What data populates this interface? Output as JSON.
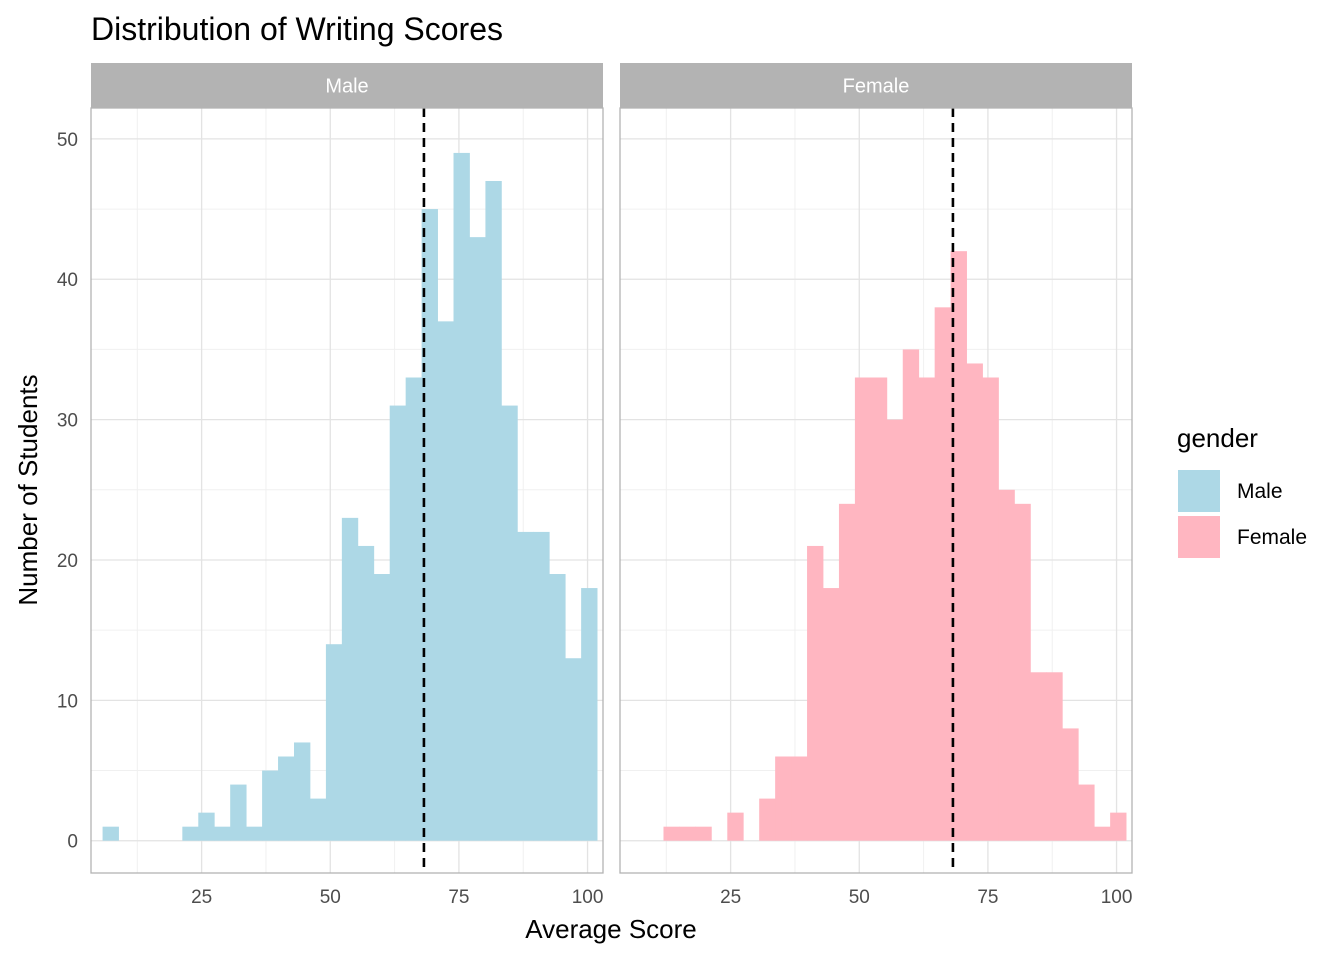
{
  "chart_data": {
    "type": "bar",
    "title": "Distribution of Writing Scores",
    "xlabel": "Average Score",
    "ylabel": "Number of Students",
    "xlim": [
      3.5,
      103
    ],
    "ylim": [
      -2.3,
      52.2
    ],
    "xticks": [
      25,
      50,
      75,
      100
    ],
    "yticks": [
      0,
      10,
      20,
      30,
      40,
      50
    ],
    "grid": true,
    "legend": {
      "title": "gender",
      "position": "right"
    },
    "reference_line": {
      "x": 68.2,
      "style": "dashed",
      "color": "#000000"
    },
    "panels": [
      {
        "name": "Male",
        "color": "#ADD8E6",
        "bin_width": 3.1,
        "bins": [
          {
            "x": 7.3,
            "count": 1
          },
          {
            "x": 10.4,
            "count": 0
          },
          {
            "x": 13.5,
            "count": 0
          },
          {
            "x": 16.6,
            "count": 0
          },
          {
            "x": 19.7,
            "count": 0
          },
          {
            "x": 22.8,
            "count": 1
          },
          {
            "x": 25.9,
            "count": 2
          },
          {
            "x": 29.0,
            "count": 1
          },
          {
            "x": 32.1,
            "count": 4
          },
          {
            "x": 35.2,
            "count": 1
          },
          {
            "x": 38.3,
            "count": 5
          },
          {
            "x": 41.4,
            "count": 6
          },
          {
            "x": 44.5,
            "count": 7
          },
          {
            "x": 47.6,
            "count": 3
          },
          {
            "x": 50.7,
            "count": 14
          },
          {
            "x": 53.8,
            "count": 23
          },
          {
            "x": 56.9,
            "count": 21
          },
          {
            "x": 60.0,
            "count": 19
          },
          {
            "x": 63.1,
            "count": 31
          },
          {
            "x": 66.2,
            "count": 33
          },
          {
            "x": 69.3,
            "count": 45
          },
          {
            "x": 72.4,
            "count": 37
          },
          {
            "x": 75.5,
            "count": 49
          },
          {
            "x": 78.6,
            "count": 43
          },
          {
            "x": 81.7,
            "count": 47
          },
          {
            "x": 84.8,
            "count": 31
          },
          {
            "x": 87.9,
            "count": 22
          },
          {
            "x": 91.0,
            "count": 22
          },
          {
            "x": 94.1,
            "count": 19
          },
          {
            "x": 97.2,
            "count": 13
          },
          {
            "x": 100.3,
            "count": 18
          }
        ]
      },
      {
        "name": "Female",
        "color": "#FFB6C1",
        "bin_width": 3.1,
        "bins": [
          {
            "x": 7.3,
            "count": 0
          },
          {
            "x": 10.4,
            "count": 0
          },
          {
            "x": 13.5,
            "count": 1
          },
          {
            "x": 16.6,
            "count": 1
          },
          {
            "x": 19.7,
            "count": 1
          },
          {
            "x": 22.8,
            "count": 0
          },
          {
            "x": 25.9,
            "count": 2
          },
          {
            "x": 29.0,
            "count": 0
          },
          {
            "x": 32.1,
            "count": 3
          },
          {
            "x": 35.2,
            "count": 6
          },
          {
            "x": 38.3,
            "count": 6
          },
          {
            "x": 41.4,
            "count": 21
          },
          {
            "x": 44.5,
            "count": 18
          },
          {
            "x": 47.6,
            "count": 24
          },
          {
            "x": 50.7,
            "count": 33
          },
          {
            "x": 53.8,
            "count": 33
          },
          {
            "x": 56.9,
            "count": 30
          },
          {
            "x": 60.0,
            "count": 35
          },
          {
            "x": 63.1,
            "count": 33
          },
          {
            "x": 66.2,
            "count": 38
          },
          {
            "x": 69.3,
            "count": 42
          },
          {
            "x": 72.4,
            "count": 34
          },
          {
            "x": 75.5,
            "count": 33
          },
          {
            "x": 78.6,
            "count": 25
          },
          {
            "x": 81.7,
            "count": 24
          },
          {
            "x": 84.8,
            "count": 12
          },
          {
            "x": 87.9,
            "count": 12
          },
          {
            "x": 91.0,
            "count": 8
          },
          {
            "x": 94.1,
            "count": 4
          },
          {
            "x": 97.2,
            "count": 1
          },
          {
            "x": 100.3,
            "count": 2
          }
        ]
      }
    ]
  }
}
